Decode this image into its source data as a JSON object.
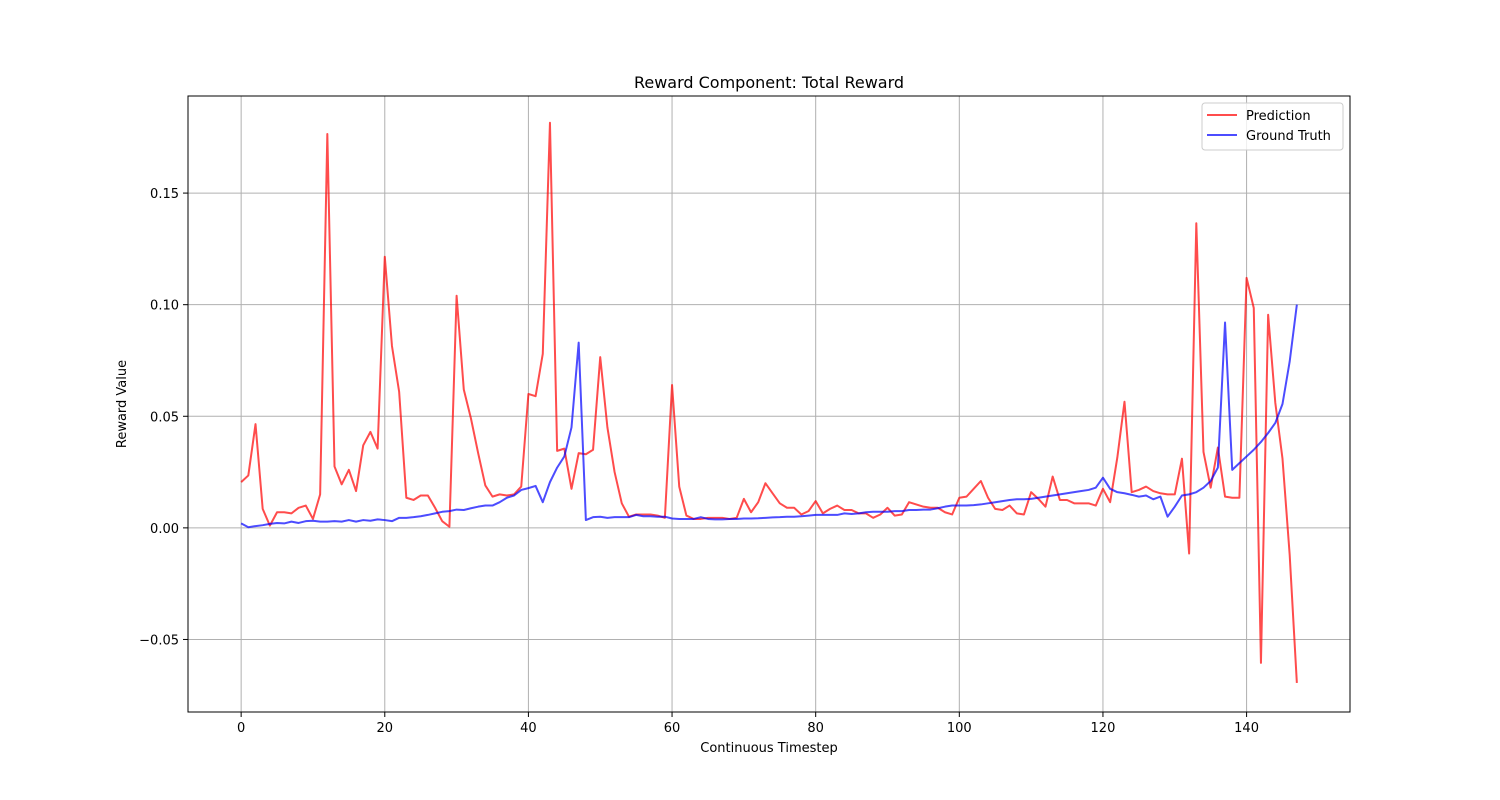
{
  "chart_data": {
    "type": "line",
    "title": "Reward Component: Total Reward",
    "xlabel": "Continuous Timestep",
    "ylabel": "Reward Value",
    "xlim": [
      -7.4,
      154.4
    ],
    "ylim": [
      -0.0825,
      0.1935
    ],
    "xticks": [
      0,
      20,
      40,
      60,
      80,
      100,
      120,
      140
    ],
    "xtick_labels": [
      "0",
      "20",
      "40",
      "60",
      "80",
      "100",
      "120",
      "140"
    ],
    "yticks": [
      -0.05,
      0.0,
      0.05,
      0.1,
      0.15
    ],
    "ytick_labels": [
      "−0.05",
      "0.00",
      "0.05",
      "0.10",
      "0.15"
    ],
    "grid": true,
    "legend_position": "top-right",
    "series": [
      {
        "name": "Prediction",
        "color": "#ff0000",
        "values": [
          0.0205,
          0.0235,
          0.0465,
          0.0085,
          0.001,
          0.007,
          0.007,
          0.0065,
          0.009,
          0.01,
          0.004,
          0.015,
          0.1765,
          0.0275,
          0.0195,
          0.026,
          0.0165,
          0.037,
          0.043,
          0.0355,
          0.1215,
          0.0815,
          0.061,
          0.0135,
          0.0125,
          0.0145,
          0.0145,
          0.009,
          0.003,
          0.0005,
          0.104,
          0.062,
          0.049,
          0.0335,
          0.019,
          0.014,
          0.015,
          0.0145,
          0.015,
          0.0185,
          0.06,
          0.059,
          0.078,
          0.1815,
          0.0345,
          0.0355,
          0.0175,
          0.0335,
          0.033,
          0.035,
          0.0765,
          0.045,
          0.025,
          0.011,
          0.005,
          0.006,
          0.006,
          0.006,
          0.0055,
          0.0045,
          0.064,
          0.0185,
          0.0055,
          0.004,
          0.004,
          0.0045,
          0.0045,
          0.0045,
          0.004,
          0.0045,
          0.013,
          0.007,
          0.0115,
          0.02,
          0.0155,
          0.011,
          0.009,
          0.009,
          0.006,
          0.0075,
          0.012,
          0.0065,
          0.0085,
          0.01,
          0.008,
          0.008,
          0.0065,
          0.0065,
          0.0045,
          0.006,
          0.009,
          0.0055,
          0.006,
          0.0115,
          0.0105,
          0.0095,
          0.009,
          0.009,
          0.007,
          0.006,
          0.0135,
          0.014,
          0.0175,
          0.021,
          0.0135,
          0.0085,
          0.008,
          0.01,
          0.0065,
          0.006,
          0.016,
          0.013,
          0.0095,
          0.023,
          0.0125,
          0.0125,
          0.011,
          0.011,
          0.011,
          0.01,
          0.0175,
          0.0115,
          0.0315,
          0.0565,
          0.016,
          0.017,
          0.0185,
          0.0165,
          0.0155,
          0.015,
          0.015,
          0.031,
          -0.0115,
          0.1365,
          0.034,
          0.018,
          0.036,
          0.014,
          0.0135,
          0.0135,
          0.112,
          0.0985,
          -0.0605,
          0.0955,
          0.056,
          0.031,
          -0.012,
          -0.0695
        ]
      },
      {
        "name": "Ground Truth",
        "color": "#0000ff",
        "values": [
          0.002,
          0.0003,
          0.0008,
          0.0012,
          0.0018,
          0.0022,
          0.002,
          0.0028,
          0.0022,
          0.003,
          0.0032,
          0.0028,
          0.0028,
          0.003,
          0.0028,
          0.0035,
          0.0028,
          0.0035,
          0.0032,
          0.0038,
          0.0035,
          0.003,
          0.0045,
          0.0045,
          0.0048,
          0.0052,
          0.0058,
          0.0065,
          0.0072,
          0.0075,
          0.0082,
          0.008,
          0.0088,
          0.0095,
          0.01,
          0.01,
          0.0115,
          0.0135,
          0.0145,
          0.017,
          0.0178,
          0.0188,
          0.0115,
          0.0205,
          0.027,
          0.032,
          0.045,
          0.083,
          0.0035,
          0.0048,
          0.005,
          0.0045,
          0.0048,
          0.0048,
          0.0048,
          0.0058,
          0.0052,
          0.0052,
          0.005,
          0.005,
          0.0042,
          0.004,
          0.004,
          0.004,
          0.0048,
          0.004,
          0.0038,
          0.0038,
          0.004,
          0.004,
          0.0042,
          0.0042,
          0.0043,
          0.0045,
          0.0047,
          0.0048,
          0.005,
          0.005,
          0.0052,
          0.0055,
          0.0058,
          0.0058,
          0.0058,
          0.0058,
          0.0065,
          0.0062,
          0.0065,
          0.007,
          0.0072,
          0.0072,
          0.0072,
          0.0075,
          0.0075,
          0.008,
          0.008,
          0.0082,
          0.0082,
          0.0088,
          0.0095,
          0.01,
          0.01,
          0.01,
          0.0102,
          0.0105,
          0.011,
          0.0115,
          0.012,
          0.0125,
          0.0128,
          0.0128,
          0.013,
          0.0135,
          0.014,
          0.0145,
          0.015,
          0.0155,
          0.016,
          0.0165,
          0.017,
          0.018,
          0.0225,
          0.0175,
          0.016,
          0.0155,
          0.0148,
          0.014,
          0.0145,
          0.0128,
          0.014,
          0.005,
          0.0095,
          0.0145,
          0.015,
          0.016,
          0.018,
          0.021,
          0.027,
          0.092,
          0.026,
          0.029,
          0.032,
          0.035,
          0.0385,
          0.0425,
          0.047,
          0.0555,
          0.0745,
          0.1
        ]
      }
    ]
  }
}
